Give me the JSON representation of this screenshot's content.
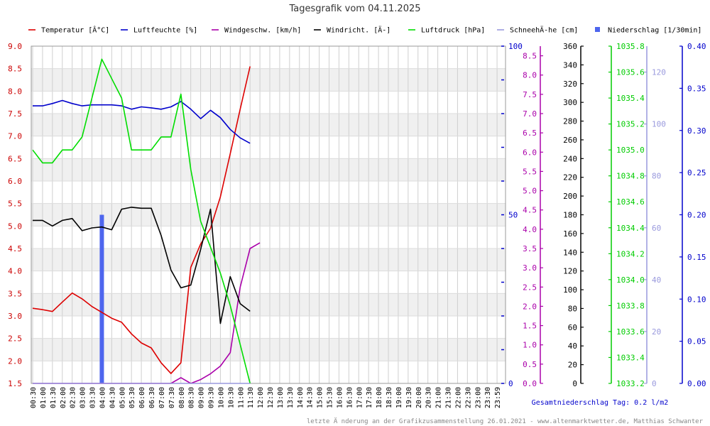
{
  "chart_data": {
    "type": "line",
    "title": "Tagesgrafik vom 04.11.2025",
    "total_precip_label": "Gesamtniederschlag Tag: 0.2 l/m2",
    "footer": "letzte Ä nderung an der Grafikzusammenstellung 26.01.2021 - www.altenmarktwetter.de, Matthias Schwanter",
    "x_labels": [
      "00:30",
      "01:00",
      "01:30",
      "02:00",
      "02:30",
      "03:00",
      "03:30",
      "04:00",
      "04:30",
      "05:00",
      "05:30",
      "06:00",
      "06:30",
      "07:00",
      "07:30",
      "08:00",
      "08:30",
      "09:00",
      "09:30",
      "10:00",
      "10:30",
      "11:00",
      "11:30",
      "12:00",
      "12:30",
      "13:00",
      "13:30",
      "14:00",
      "14:30",
      "15:00",
      "15:30",
      "16:00",
      "16:30",
      "17:00",
      "17:30",
      "18:00",
      "18:30",
      "19:00",
      "19:30",
      "20:00",
      "20:30",
      "21:00",
      "21:30",
      "22:00",
      "22:30",
      "23:00",
      "23:30",
      "23:59"
    ],
    "grid": true,
    "legend_position": "top",
    "axes": [
      {
        "id": "temp",
        "side": "left",
        "color": "#cc0000",
        "min": 1.5,
        "max": 9.0,
        "ticks": [
          "1.5",
          "2.0",
          "2.5",
          "3.0",
          "3.5",
          "4.0",
          "4.5",
          "5.0",
          "5.5",
          "6.0",
          "6.5",
          "7.0",
          "7.5",
          "8.0",
          "8.5",
          "9.0"
        ]
      },
      {
        "id": "hum",
        "side": "right",
        "color": "#0000cc",
        "min": 0,
        "max": 100,
        "ticks": [
          "0",
          "50",
          "100"
        ],
        "minor_step": 10
      },
      {
        "id": "wind",
        "side": "right",
        "color": "#aa00aa",
        "min": 0,
        "max": 8.75,
        "ticks": [
          "0.0",
          "0.5",
          "1.0",
          "1.5",
          "2.0",
          "2.5",
          "3.0",
          "3.5",
          "4.0",
          "4.5",
          "5.0",
          "5.5",
          "6.0",
          "6.5",
          "7.0",
          "7.5",
          "8.0",
          "8.5"
        ]
      },
      {
        "id": "dir",
        "side": "right",
        "color": "#000000",
        "min": 0,
        "max": 360,
        "ticks": [
          "0",
          "20",
          "40",
          "60",
          "80",
          "100",
          "120",
          "140",
          "160",
          "180",
          "200",
          "220",
          "240",
          "260",
          "280",
          "300",
          "320",
          "340",
          "360"
        ]
      },
      {
        "id": "press",
        "side": "right",
        "color": "#00cc00",
        "min": 1033.2,
        "max": 1035.8,
        "ticks": [
          "1033.2",
          "1033.4",
          "1033.6",
          "1033.8",
          "1034.0",
          "1034.2",
          "1034.4",
          "1034.6",
          "1034.8",
          "1035.0",
          "1035.2",
          "1035.4",
          "1035.6",
          "1035.8"
        ]
      },
      {
        "id": "snow",
        "side": "right",
        "color": "#9999dd",
        "min": 0,
        "max": 130,
        "ticks": [
          "0",
          "20",
          "40",
          "60",
          "80",
          "100",
          "120"
        ]
      },
      {
        "id": "rain",
        "side": "right",
        "color": "#0000cc",
        "min": 0,
        "max": 0.4,
        "ticks": [
          "0.00",
          "0.05",
          "0.10",
          "0.15",
          "0.20",
          "0.25",
          "0.30",
          "0.35",
          "0.40"
        ]
      }
    ],
    "series": [
      {
        "name": "Temperatur [Â°C]",
        "axis": "temp",
        "color": "#dd0000",
        "type": "line",
        "values": [
          3.17,
          3.14,
          3.1,
          3.31,
          3.51,
          3.38,
          3.21,
          3.08,
          2.95,
          2.86,
          2.6,
          2.4,
          2.29,
          1.96,
          1.72,
          1.96,
          4.08,
          4.6,
          4.95,
          5.65,
          6.61,
          7.6,
          8.55
        ]
      },
      {
        "name": "Luftfeuchte [%]",
        "axis": "hum",
        "color": "#0000cc",
        "type": "line",
        "values": [
          82.3,
          82.3,
          83.0,
          83.9,
          83.0,
          82.3,
          82.6,
          82.6,
          82.6,
          82.3,
          81.3,
          82.0,
          81.7,
          81.3,
          82.0,
          83.6,
          81.3,
          78.5,
          81.0,
          78.8,
          75.3,
          72.8,
          71.2
        ]
      },
      {
        "name": "Windgeschw. [km/h]",
        "axis": "wind",
        "color": "#aa00aa",
        "type": "line",
        "values": [
          0,
          0,
          0,
          0,
          0,
          0,
          0,
          0,
          0,
          0,
          0,
          0,
          0,
          0,
          0,
          0.15,
          0,
          0.1,
          0.25,
          0.45,
          0.8,
          2.5,
          3.5,
          3.65
        ]
      },
      {
        "name": "Windricht. [Ä-]",
        "axis": "dir",
        "color": "#000000",
        "type": "line",
        "values": [
          174,
          174,
          168,
          174,
          176,
          163,
          166,
          167,
          164,
          186,
          188,
          187,
          187,
          158,
          121,
          102,
          105,
          143,
          186,
          64,
          114,
          85,
          77
        ]
      },
      {
        "name": "Luftdruck [hPa]",
        "axis": "press",
        "color": "#00dd00",
        "type": "line",
        "values": [
          1035.0,
          1034.9,
          1034.9,
          1035.0,
          1035.0,
          1035.1,
          1035.4,
          1035.7,
          1035.55,
          1035.4,
          1035.0,
          1035.0,
          1035.0,
          1035.1,
          1035.1,
          1035.43,
          1034.85,
          1034.45,
          1034.25,
          1034.05,
          1033.8,
          1033.5,
          1033.2
        ]
      },
      {
        "name": "SchneehÄ-he [cm]",
        "axis": "snow",
        "color": "#9999dd",
        "type": "line",
        "values": [
          0,
          0,
          0,
          0,
          0,
          0,
          0,
          0,
          0,
          0,
          0,
          0,
          0,
          0,
          0,
          0,
          0,
          0,
          0,
          0,
          0,
          0,
          0
        ]
      },
      {
        "name": "Niederschlag [1/30min]",
        "axis": "rain",
        "color": "#4e66ee",
        "type": "bar",
        "values": [
          0,
          0,
          0,
          0,
          0,
          0,
          0,
          0.2,
          0,
          0,
          0,
          0,
          0,
          0,
          0,
          0,
          0,
          0,
          0,
          0,
          0,
          0,
          0
        ]
      }
    ]
  }
}
